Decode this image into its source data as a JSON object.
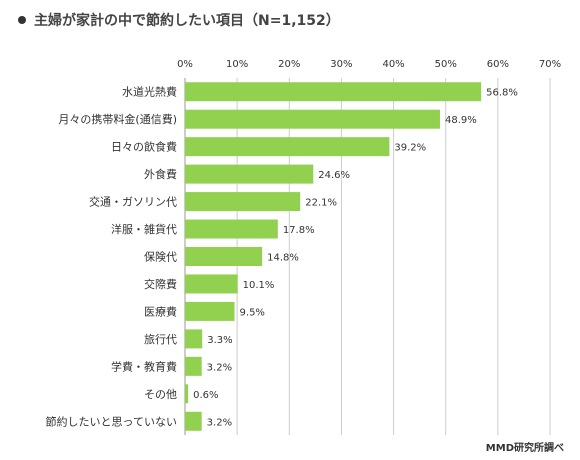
{
  "title": "主婦が家計の中で節約したい項目（N=1,152）",
  "source": "MMD研究所調べ",
  "colors": {
    "bar": "#92D050",
    "grid": "#cccccc",
    "axis": "#999999",
    "text": "#333333"
  },
  "chart_data": {
    "type": "bar",
    "orientation": "horizontal",
    "title": "主婦が家計の中で節約したい項目（N=1,152）",
    "xlim": [
      0,
      70
    ],
    "xticks": [
      "0%",
      "10%",
      "20%",
      "30%",
      "40%",
      "50%",
      "60%",
      "70%"
    ],
    "grid": true,
    "categories": [
      "水道光熱費",
      "月々の携帯料金(通信費)",
      "日々の飲食費",
      "外食費",
      "交通・ガソリン代",
      "洋服・雑貨代",
      "保険代",
      "交際費",
      "医療費",
      "旅行代",
      "学費・教育費",
      "その他",
      "節約したいと思っていない"
    ],
    "values": [
      56.8,
      48.9,
      39.2,
      24.6,
      22.1,
      17.8,
      14.8,
      10.1,
      9.5,
      3.3,
      3.2,
      0.6,
      3.2
    ],
    "value_labels": [
      "56.8%",
      "48.9%",
      "39.2%",
      "24.6%",
      "22.1%",
      "17.8%",
      "14.8%",
      "10.1%",
      "9.5%",
      "3.3%",
      "3.2%",
      "0.6%",
      "3.2%"
    ]
  }
}
